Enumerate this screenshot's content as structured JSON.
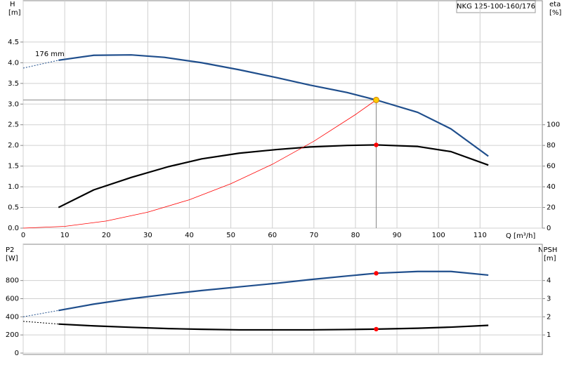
{
  "chart_data": [
    {
      "type": "line",
      "title": "NKG 125-100-160/176",
      "annotation": "176 mm",
      "ylabel": "H",
      "ylabel_unit": "[m]",
      "y2label": "eta",
      "y2label_unit": "[%]",
      "xlabel": "Q [m³/h]",
      "xlim": [
        0,
        125
      ],
      "xticks": [
        0,
        10,
        20,
        30,
        40,
        50,
        60,
        70,
        80,
        90,
        100,
        110
      ],
      "ylim": [
        0,
        5.5
      ],
      "yticks": [
        {
          "value": 0,
          "label": "0.0"
        },
        0.5,
        {
          "value": 1,
          "label": "1.0"
        },
        1.5,
        {
          "value": 2,
          "label": "2.0"
        },
        2.5,
        {
          "value": 3,
          "label": "3.0"
        },
        3.5,
        {
          "value": 4,
          "label": "4.0"
        },
        4.5
      ],
      "y2lim": [
        0,
        220
      ],
      "y2ticks": [
        0,
        20,
        40,
        60,
        80,
        100
      ],
      "grid": true,
      "series": [
        {
          "color": "#1f4e8c",
          "dash": true,
          "x": [
            0,
            8.5
          ],
          "values": [
            3.87,
            4.06
          ]
        },
        {
          "color": "#1f4e8c",
          "x": [
            8.5,
            17,
            26,
            34,
            43,
            52,
            61,
            69,
            78,
            85,
            95,
            103,
            112
          ],
          "values": [
            4.06,
            4.18,
            4.19,
            4.13,
            4.0,
            3.83,
            3.64,
            3.46,
            3.28,
            3.1,
            2.8,
            2.4,
            1.74
          ]
        },
        {
          "color": "#000000",
          "axis": "y2",
          "x": [
            8.5,
            17,
            26,
            35,
            43,
            52,
            61,
            69,
            78,
            85,
            95,
            103,
            112
          ],
          "values": [
            20,
            37,
            49,
            59.5,
            67,
            72.5,
            76,
            78.5,
            80,
            80.5,
            79,
            74,
            61
          ]
        },
        {
          "color": "#ff0000",
          "thin": true,
          "x": [
            0,
            10,
            20,
            30,
            40,
            50,
            60,
            70,
            80,
            85
          ],
          "values": [
            0,
            0.043,
            0.172,
            0.386,
            0.686,
            1.073,
            1.544,
            2.102,
            2.746,
            3.1
          ]
        }
      ],
      "points": [
        {
          "x": 85,
          "y": 3.1,
          "color": "#ffcc00",
          "guides": true
        },
        {
          "x": 85,
          "y": 80.5,
          "color": "#ff0000",
          "axis": "y2"
        }
      ]
    },
    {
      "type": "line",
      "ylabel": "P2",
      "ylabel_unit": "[W]",
      "y2label": "NPSH",
      "y2label_unit": "[m]",
      "xlim": [
        0,
        125
      ],
      "ylim": [
        0,
        1200
      ],
      "yticks": [
        0,
        200,
        400,
        600,
        800
      ],
      "y2lim": [
        0,
        6
      ],
      "y2ticks": [
        1,
        2,
        3,
        4
      ],
      "grid": true,
      "series": [
        {
          "color": "#1f4e8c",
          "dash": true,
          "x": [
            0,
            8.5
          ],
          "values": [
            400,
            470
          ]
        },
        {
          "color": "#1f4e8c",
          "x": [
            8.5,
            17,
            26,
            35,
            43,
            52,
            61,
            69,
            78,
            85,
            95,
            103,
            112
          ],
          "values": [
            470,
            540,
            600,
            650,
            690,
            730,
            770,
            810,
            850,
            880,
            900,
            900,
            860
          ]
        },
        {
          "color": "#000000",
          "dash": true,
          "axis": "y2",
          "x": [
            0,
            8.5
          ],
          "values": [
            1.75,
            1.6
          ]
        },
        {
          "color": "#000000",
          "axis": "y2",
          "x": [
            8.5,
            17,
            26,
            35,
            43,
            52,
            61,
            69,
            78,
            85,
            95,
            103,
            112
          ],
          "values": [
            1.6,
            1.5,
            1.42,
            1.35,
            1.31,
            1.28,
            1.28,
            1.28,
            1.3,
            1.32,
            1.37,
            1.43,
            1.53
          ]
        }
      ],
      "points": [
        {
          "x": 85,
          "y": 880,
          "color": "#ff0000"
        },
        {
          "x": 85,
          "y": 1.32,
          "color": "#ff0000",
          "axis": "y2"
        }
      ]
    }
  ]
}
